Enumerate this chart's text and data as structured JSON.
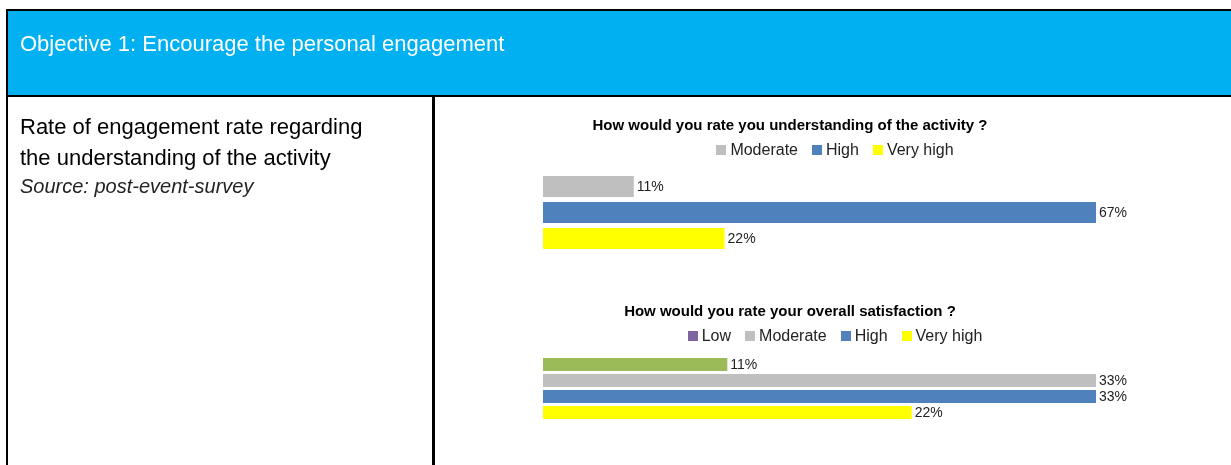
{
  "chart_data": [
    {
      "type": "other",
      "title": "Objective 1: Encourage the personal engagement",
      "subtitle": "Rate of engagement rate regarding the understanding of the activity",
      "annotations": [
        "Source: post-event-survey"
      ]
    },
    {
      "type": "bar",
      "orientation": "horizontal",
      "title": "How would you rate you understanding of the activity ?",
      "categories": [
        null
      ],
      "tick_labels": false,
      "legend": "top",
      "series": [
        {
          "name": "Moderate",
          "color": "#bfbfbf",
          "values": [
            11
          ],
          "value_labels": [
            "11%"
          ]
        },
        {
          "name": "High",
          "color": "#4f81bd",
          "values": [
            67
          ],
          "value_labels": [
            "67%"
          ]
        },
        {
          "name": "Very high",
          "color": "#ffff00",
          "values": [
            22
          ],
          "value_labels": [
            "22%"
          ]
        }
      ]
    },
    {
      "type": "bar",
      "orientation": "horizontal",
      "title": "How would you rate your overall satisfaction ?",
      "categories": [
        null
      ],
      "tick_labels": false,
      "legend": "top",
      "series": [
        {
          "name": "Low",
          "color": "#8064a2",
          "colors": [
            "#9bbb59"
          ],
          "values": [
            11
          ],
          "value_labels": [
            "11%"
          ]
        },
        {
          "name": "Moderate",
          "color": "#bfbfbf",
          "values": [
            33
          ],
          "value_labels": [
            "33%"
          ]
        },
        {
          "name": "High",
          "color": "#4f81bd",
          "values": [
            33
          ],
          "value_labels": [
            "33%"
          ]
        },
        {
          "name": "Very high",
          "color": "#ffff00",
          "values": [
            22
          ],
          "value_labels": [
            "22%"
          ]
        }
      ]
    }
  ]
}
